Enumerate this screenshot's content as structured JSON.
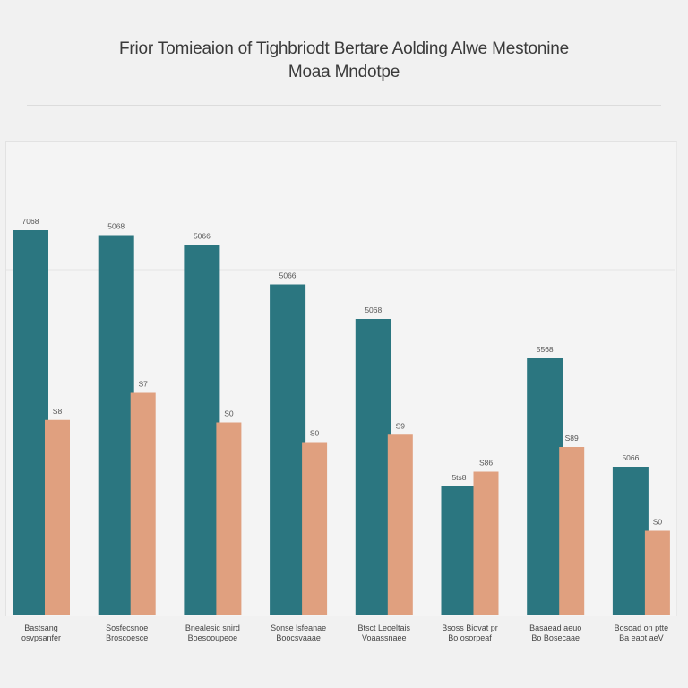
{
  "chart_data": {
    "type": "bar",
    "title": "Frior Tomieaion of Tighbriodt Bertare Aolding Alwe Mestonine",
    "subtitle": "Moaa Mndotpe",
    "categories": [
      [
        "Bastsang",
        "osvpsanfer"
      ],
      [
        "Sosfecsnoe",
        "Broscoesce"
      ],
      [
        "Bnealesic snird",
        "Boesooupeoe"
      ],
      [
        "Sonse lsfeanae",
        "Boocsvaaae"
      ],
      [
        "Btsct Leoeltais",
        "Voaassnaee"
      ],
      [
        "Bsoss Biovat pr",
        "Bo osorpeaf"
      ],
      [
        "Basaead aeuo",
        "Bo Bosecaae"
      ],
      [
        "Bosoad on ptte",
        "Ba eaot aeV"
      ]
    ],
    "series": [
      {
        "color": "#2b7680",
        "values": [
          7800,
          7700,
          7500,
          6700,
          6000,
          2600,
          5200,
          3000
        ]
      },
      {
        "color": "#e0a07f",
        "values": [
          3950,
          4500,
          3900,
          3500,
          3650,
          2900,
          3400,
          1700
        ]
      }
    ],
    "value_labels": [
      [
        "7068",
        "5068",
        "5066",
        "5066",
        "5068",
        "5ts8",
        "5568",
        "5066"
      ],
      [
        "S8",
        "S7",
        "S0",
        "S0",
        "S9",
        "S86",
        "S89",
        "S0"
      ]
    ],
    "ylim": [
      0,
      9600
    ],
    "grid": true,
    "legend": "none"
  }
}
